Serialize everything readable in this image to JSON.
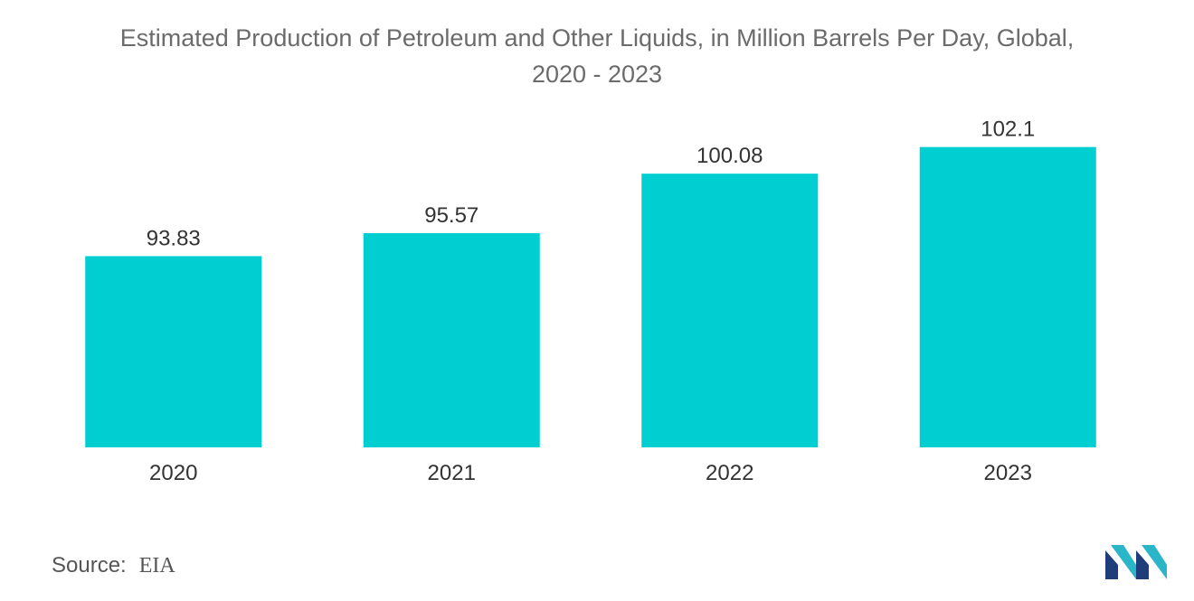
{
  "chart_data": {
    "type": "bar",
    "title_line1": "Estimated Production of Petroleum and Other Liquids, in Million Barrels Per Day, Global,",
    "title_line2": "2020 - 2023",
    "categories": [
      "2020",
      "2021",
      "2022",
      "2023"
    ],
    "values": [
      93.83,
      95.57,
      100.08,
      102.1
    ],
    "value_labels": [
      "93.83",
      "95.57",
      "100.08",
      "102.1"
    ],
    "xlabel": "",
    "ylabel": "",
    "grid": false,
    "legend": "none",
    "bar_color": "#00ced1"
  },
  "footer": {
    "source_label": "Source:",
    "source_value": "EIA"
  },
  "logo": {
    "icon": "mordor-intelligence-logo-icon",
    "colors": [
      "#1f3d7a",
      "#2bb5c8"
    ]
  }
}
